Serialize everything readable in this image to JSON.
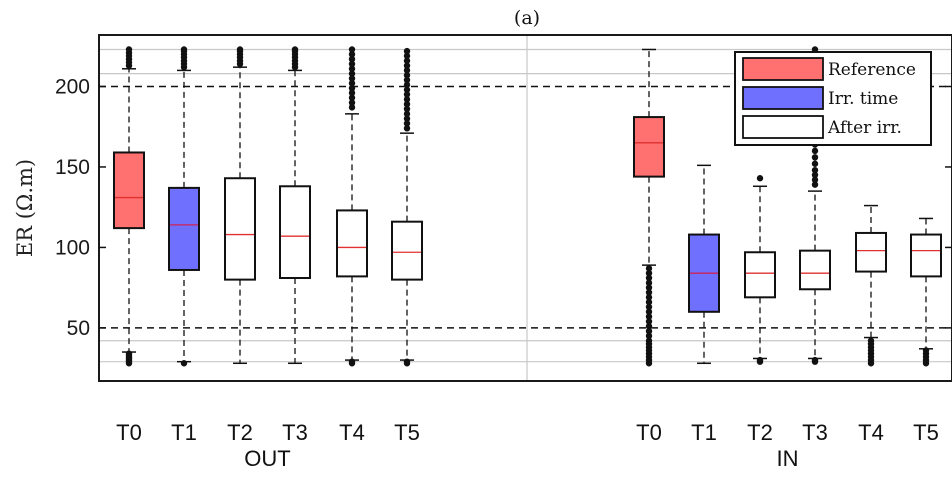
{
  "chart_data": {
    "type": "box",
    "title": "(a)",
    "ylabel": "ER (Ω.m)",
    "ylim": [
      17,
      232
    ],
    "yticks": [
      50,
      100,
      150,
      200
    ],
    "grid_y": [
      29,
      42,
      208,
      223
    ],
    "reference_lines": [
      50,
      200
    ],
    "groups": [
      {
        "label": "OUT",
        "categories": [
          "T0",
          "T1",
          "T2",
          "T3",
          "T4",
          "T5"
        ],
        "boxes": [
          {
            "category": "T0",
            "kind": "Reference",
            "whisker_low": 35,
            "q1": 112,
            "median": 131,
            "q3": 159,
            "whisker_high": 211,
            "outliers_low": [
              28,
              29,
              30,
              31,
              32,
              33,
              34
            ],
            "outliers_high": [
              213,
              215,
              217,
              219,
              221,
              223
            ]
          },
          {
            "category": "T1",
            "kind": "Irr. time",
            "whisker_low": 29,
            "q1": 86,
            "median": 114,
            "q3": 137,
            "whisker_high": 210,
            "outliers_low": [
              28
            ],
            "outliers_high": [
              212,
              214,
              216,
              218,
              220,
              222,
              223
            ]
          },
          {
            "category": "T2",
            "kind": "After irr.",
            "whisker_low": 28,
            "q1": 80,
            "median": 108,
            "q3": 143,
            "whisker_high": 212,
            "outliers_low": [],
            "outliers_high": [
              214,
              216,
              218,
              220,
              222,
              223
            ]
          },
          {
            "category": "T3",
            "kind": "After irr.",
            "whisker_low": 28,
            "q1": 81,
            "median": 107,
            "q3": 138,
            "whisker_high": 210,
            "outliers_low": [],
            "outliers_high": [
              212,
              214,
              216,
              218,
              220,
              222,
              223
            ]
          },
          {
            "category": "T4",
            "kind": "After irr.",
            "whisker_low": 30,
            "q1": 82,
            "median": 100,
            "q3": 123,
            "whisker_high": 183,
            "outliers_low": [
              28,
              29
            ],
            "outliers_high": [
              187,
              190,
              193,
              196,
              199,
              202,
              205,
              208,
              211,
              214,
              217,
              220,
              223
            ]
          },
          {
            "category": "T5",
            "kind": "After irr.",
            "whisker_low": 30,
            "q1": 80,
            "median": 97,
            "q3": 116,
            "whisker_high": 171,
            "outliers_low": [
              28,
              29
            ],
            "outliers_high": [
              174,
              177,
              180,
              183,
              186,
              189,
              192,
              195,
              198,
              201,
              204,
              207,
              210,
              213,
              216,
              219,
              222
            ]
          }
        ]
      },
      {
        "label": "IN",
        "categories": [
          "T0",
          "T1",
          "T2",
          "T3",
          "T4",
          "T5"
        ],
        "boxes": [
          {
            "category": "T0",
            "kind": "Reference",
            "whisker_low": 89,
            "q1": 144,
            "median": 165,
            "q3": 181,
            "whisker_high": 223,
            "outliers_low": [
              28,
              30,
              32,
              34,
              36,
              38,
              40,
              42,
              45,
              48,
              51,
              54,
              57,
              60,
              63,
              66,
              69,
              72,
              75,
              78,
              81,
              84,
              87
            ],
            "outliers_high": []
          },
          {
            "category": "T1",
            "kind": "Irr. time",
            "whisker_low": 28,
            "q1": 60,
            "median": 84,
            "q3": 108,
            "whisker_high": 151,
            "outliers_low": [],
            "outliers_high": []
          },
          {
            "category": "T2",
            "kind": "After irr.",
            "whisker_low": 31,
            "q1": 69,
            "median": 84,
            "q3": 97,
            "whisker_high": 138,
            "outliers_low": [
              29,
              30
            ],
            "outliers_high": [
              143
            ]
          },
          {
            "category": "T3",
            "kind": "After irr.",
            "whisker_low": 31,
            "q1": 74,
            "median": 84,
            "q3": 98,
            "whisker_high": 135,
            "outliers_low": [
              29,
              30
            ],
            "outliers_high": [
              139,
              142,
              145,
              148,
              152,
              156,
              160,
              164,
              168,
              172,
              176,
              181,
              186,
              191,
              196,
              201,
              206,
              211,
              216,
              221,
              223
            ]
          },
          {
            "category": "T4",
            "kind": "After irr.",
            "whisker_low": 44,
            "q1": 85,
            "median": 98,
            "q3": 109,
            "whisker_high": 126,
            "outliers_low": [
              28,
              30,
              32,
              34,
              36,
              38,
              40,
              42
            ],
            "outliers_high": []
          },
          {
            "category": "T5",
            "kind": "After irr.",
            "whisker_low": 37,
            "q1": 82,
            "median": 98,
            "q3": 108,
            "whisker_high": 118,
            "outliers_low": [
              28,
              30,
              32,
              34,
              36
            ],
            "outliers_high": []
          }
        ]
      }
    ],
    "legend": {
      "position": "top-right",
      "entries": [
        {
          "label": "Reference",
          "color": "#ff7070"
        },
        {
          "label": "Irr. time",
          "color": "#7070ff"
        },
        {
          "label": "After irr.",
          "color": "#ffffff"
        }
      ]
    },
    "colors": {
      "Reference": "#ff7070",
      "Irr. time": "#7070ff",
      "After irr.": "#ffffff",
      "median": "#e03030",
      "median_on_blue": "#cc2255",
      "outline": "#111111"
    }
  }
}
